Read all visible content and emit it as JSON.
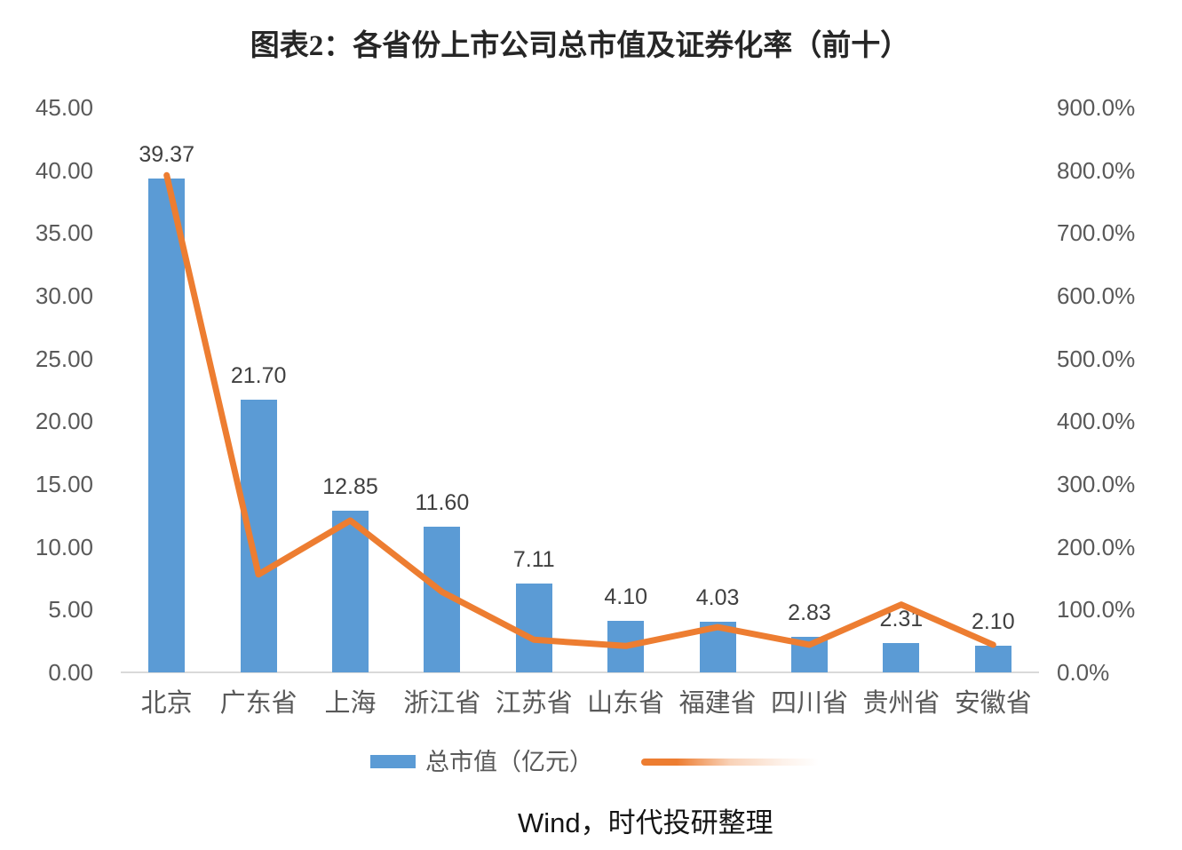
{
  "title": "图表2：各省份上市公司总市值及证券化率（前十）",
  "source_note": "Wind，时代投研整理",
  "legend": {
    "bar_label": "总市值（亿元）",
    "line_label": "",
    "line_label_visible": false
  },
  "colors": {
    "bar": "#5b9bd5",
    "line": "#ed7d31",
    "axis_text": "#595959",
    "value_label_text": "#404040",
    "axis_line": "#d9d9d9",
    "title_text": "#262626"
  },
  "chart_data": {
    "type": "combo (bar+line)",
    "title": "图表2：各省份上市公司总市值及证券化率（前十）",
    "categories": [
      "北京",
      "广东省",
      "上海",
      "浙江省",
      "江苏省",
      "山东省",
      "福建省",
      "四川省",
      "贵州省",
      "安徽省"
    ],
    "series": [
      {
        "name": "总市值（亿元）",
        "type": "bar",
        "axis": "left",
        "values": [
          39.37,
          21.7,
          12.85,
          11.6,
          7.11,
          4.1,
          4.03,
          2.83,
          2.31,
          2.1
        ],
        "labels": [
          "39.37",
          "21.70",
          "12.85",
          "11.60",
          "7.11",
          "4.10",
          "4.03",
          "2.83",
          "2.31",
          "2.10"
        ]
      },
      {
        "name": "证券化率",
        "type": "line",
        "axis": "right",
        "values_unit": "%",
        "values_estimated": true,
        "values": [
          792,
          156,
          242,
          128,
          52,
          42,
          72,
          44,
          108,
          44
        ]
      }
    ],
    "left_axis": {
      "min": 0,
      "max": 45,
      "ticks": [
        "0.00",
        "5.00",
        "10.00",
        "15.00",
        "20.00",
        "25.00",
        "30.00",
        "35.00",
        "40.00",
        "45.00"
      ]
    },
    "right_axis": {
      "min": 0,
      "max": 900,
      "ticks": [
        "0.0%",
        "100.0%",
        "200.0%",
        "300.0%",
        "400.0%",
        "500.0%",
        "600.0%",
        "700.0%",
        "800.0%",
        "900.0%"
      ]
    },
    "grid": false,
    "legend_position": "bottom"
  }
}
